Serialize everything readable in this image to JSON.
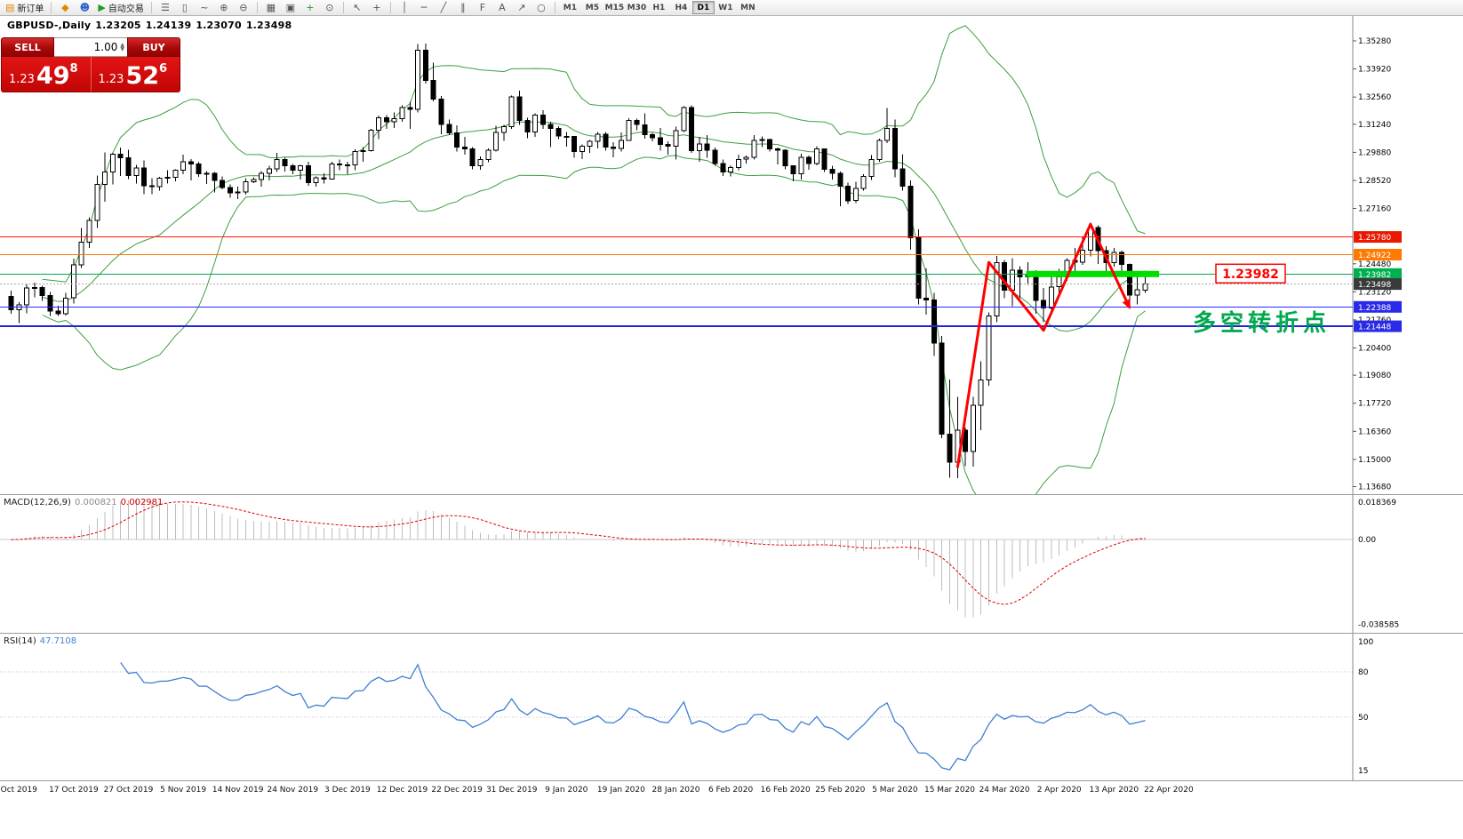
{
  "toolbar": {
    "new_order_label": "新订单",
    "auto_trading_label": "自动交易",
    "timeframes": [
      "M1",
      "M5",
      "M15",
      "M30",
      "H1",
      "H4",
      "D1",
      "W1",
      "MN"
    ],
    "active_timeframe": "D1"
  },
  "icons": {
    "new_order": "▤",
    "funnel": "◆",
    "profile": "☻",
    "auto_trading": "▶",
    "bar_chart": "☰",
    "candle_chart": "▯",
    "line_chart": "~",
    "zoom_in": "⊕",
    "zoom_out": "⊖",
    "tile_windows": "▦",
    "data_window": "▣",
    "indicators": "+",
    "clock": "⊙",
    "cursor": "↖",
    "crosshair": "+",
    "vertical_line": "│",
    "horizontal_line": "─",
    "trendline": "╱",
    "channel": "∥",
    "fibonacci": "F",
    "text_label": "A",
    "arrow_tool": "↗",
    "shapes": "○",
    "spinner_up": "▲",
    "spinner_down": "▼"
  },
  "trade_panel": {
    "sell_label": "SELL",
    "buy_label": "BUY",
    "volume": "1.00",
    "sell_big": "1.23",
    "sell_main": "49",
    "sell_sup": "8",
    "buy_big": "1.23",
    "buy_main": "52",
    "buy_sup": "6"
  },
  "chart_header": {
    "symbol_period": "GBPUSD-,Daily",
    "open": "1.23205",
    "high": "1.24139",
    "low": "1.23070",
    "close": "1.23498"
  },
  "annotations": {
    "turning_point_text": "多空转折点",
    "turning_point_color": "#00a84e",
    "price_callout": "1.23982",
    "price_callout_color": "#ff0000"
  },
  "indicators": {
    "macd": {
      "name": "MACD(12,26,9)",
      "value_main": "0.000821",
      "value_signal": "0.002981",
      "axis_max": "0.018369",
      "axis_zero": "0.00",
      "axis_min": "-0.038585",
      "hist_color": "#bdbdbd",
      "signal_color": "#e00000"
    },
    "rsi": {
      "name": "RSI(14)",
      "value": "47.7108",
      "axis": [
        "100",
        "80",
        "50",
        "15"
      ],
      "levels": [
        80,
        50
      ],
      "color": "#3e7fd4"
    }
  },
  "chart_data": {
    "type": "candlestick",
    "symbol": "GBPUSD-",
    "period": "Daily",
    "ylim": [
      1.134,
      1.364
    ],
    "y_ticks": [
      1.3528,
      1.3392,
      1.3256,
      1.3124,
      1.2988,
      1.2852,
      1.2716,
      1.2448,
      1.2312,
      1.2176,
      1.204,
      1.1908,
      1.1772,
      1.1636,
      1.15,
      1.1368
    ],
    "x_labels": [
      {
        "i": 1,
        "label": "Oct 2019"
      },
      {
        "i": 8,
        "label": "17 Oct 2019"
      },
      {
        "i": 15,
        "label": "27 Oct 2019"
      },
      {
        "i": 22,
        "label": "5 Nov 2019"
      },
      {
        "i": 29,
        "label": "14 Nov 2019"
      },
      {
        "i": 36,
        "label": "24 Nov 2019"
      },
      {
        "i": 43,
        "label": "3 Dec 2019"
      },
      {
        "i": 50,
        "label": "12 Dec 2019"
      },
      {
        "i": 57,
        "label": "22 Dec 2019"
      },
      {
        "i": 64,
        "label": "31 Dec 2019"
      },
      {
        "i": 71,
        "label": "9 Jan 2020"
      },
      {
        "i": 78,
        "label": "19 Jan 2020"
      },
      {
        "i": 85,
        "label": "28 Jan 2020"
      },
      {
        "i": 92,
        "label": "6 Feb 2020"
      },
      {
        "i": 99,
        "label": "16 Feb 2020"
      },
      {
        "i": 106,
        "label": "25 Feb 2020"
      },
      {
        "i": 113,
        "label": "5 Mar 2020"
      },
      {
        "i": 120,
        "label": "15 Mar 2020"
      },
      {
        "i": 127,
        "label": "24 Mar 2020"
      },
      {
        "i": 134,
        "label": "2 Apr 2020"
      },
      {
        "i": 141,
        "label": "13 Apr 2020"
      },
      {
        "i": 148,
        "label": "22 Apr 2020"
      }
    ],
    "bollinger": {
      "period": 20,
      "deviation": 2,
      "color": "#3f9e3f"
    },
    "candle_colors": {
      "bull": "#ffffff",
      "bear": "#000000",
      "outline": "#000000"
    },
    "hlines": [
      {
        "price": 1.2578,
        "color": "#ff1a00",
        "width": 1,
        "label": "1.25780",
        "badge_color": "#e81900"
      },
      {
        "price": 1.24922,
        "color": "#ff7a00",
        "width": 1,
        "label": "1.24922",
        "badge_color": "#ff7a00"
      },
      {
        "price": 1.23982,
        "color": "#00a651",
        "width": 1,
        "label": "1.23982",
        "badge_color": "#00b050"
      },
      {
        "price": 1.22388,
        "color": "#2828ff",
        "width": 1,
        "label": "1.22388",
        "badge_color": "#2a2ae8"
      },
      {
        "price": 1.21448,
        "color": "#2222e0",
        "width": 2,
        "label": "1.21448",
        "badge_color": "#2a2ae8"
      }
    ],
    "current_price": {
      "value": 1.23498,
      "label": "1.23498",
      "badge_color": "#3a3a3a",
      "line_color": "#aaaaaa"
    },
    "support_segment": {
      "price": 1.23982,
      "i_start": 130,
      "i_end": 147,
      "color": "#00dd00",
      "thickness": 7
    },
    "zigzag": {
      "color": "#ff0000",
      "points": [
        {
          "i": 121,
          "p": 1.146
        },
        {
          "i": 125,
          "p": 1.2455
        },
        {
          "i": 132,
          "p": 1.2125
        },
        {
          "i": 138,
          "p": 1.264
        },
        {
          "i": 143,
          "p": 1.2235
        }
      ]
    },
    "ohlc": [
      [
        1.229,
        1.2318,
        1.2205,
        1.2225
      ],
      [
        1.2225,
        1.2262,
        1.216,
        1.2248
      ],
      [
        1.2248,
        1.2348,
        1.2208,
        1.233
      ],
      [
        1.233,
        1.2356,
        1.2286,
        1.2332
      ],
      [
        1.2332,
        1.2342,
        1.2268,
        1.2295
      ],
      [
        1.2295,
        1.2312,
        1.2196,
        1.2218
      ],
      [
        1.2218,
        1.2244,
        1.2194,
        1.2206
      ],
      [
        1.2206,
        1.2307,
        1.2198,
        1.2282
      ],
      [
        1.2282,
        1.2472,
        1.2256,
        1.2442
      ],
      [
        1.2442,
        1.2622,
        1.2428,
        1.2552
      ],
      [
        1.2552,
        1.2672,
        1.2524,
        1.2658
      ],
      [
        1.2658,
        1.2876,
        1.2622,
        1.2832
      ],
      [
        1.2832,
        1.2988,
        1.2748,
        1.2892
      ],
      [
        1.2892,
        1.2986,
        1.2832,
        1.2978
      ],
      [
        1.2978,
        1.3012,
        1.2874,
        1.2962
      ],
      [
        1.2962,
        1.3,
        1.2858,
        1.2876
      ],
      [
        1.2876,
        1.2928,
        1.2836,
        1.2912
      ],
      [
        1.2912,
        1.2948,
        1.2786,
        1.2826
      ],
      [
        1.2826,
        1.2862,
        1.2786,
        1.2822
      ],
      [
        1.2822,
        1.2868,
        1.2802,
        1.2862
      ],
      [
        1.2862,
        1.2902,
        1.2836,
        1.2866
      ],
      [
        1.2866,
        1.2906,
        1.2848,
        1.2902
      ],
      [
        1.2902,
        1.2976,
        1.2882,
        1.2942
      ],
      [
        1.2942,
        1.2956,
        1.2852,
        1.2932
      ],
      [
        1.2932,
        1.2942,
        1.2868,
        1.2884
      ],
      [
        1.2884,
        1.2898,
        1.2834,
        1.2886
      ],
      [
        1.2886,
        1.2892,
        1.2794,
        1.2852
      ],
      [
        1.2852,
        1.2872,
        1.2808,
        1.2818
      ],
      [
        1.2818,
        1.2832,
        1.2768,
        1.2792
      ],
      [
        1.2792,
        1.2822,
        1.2762,
        1.2796
      ],
      [
        1.2796,
        1.2862,
        1.2782,
        1.2846
      ],
      [
        1.2846,
        1.2866,
        1.2838,
        1.2856
      ],
      [
        1.2856,
        1.2896,
        1.2822,
        1.2886
      ],
      [
        1.2886,
        1.2922,
        1.2852,
        1.2908
      ],
      [
        1.2908,
        1.2986,
        1.2892,
        1.2952
      ],
      [
        1.2952,
        1.2962,
        1.2894,
        1.2922
      ],
      [
        1.2922,
        1.2932,
        1.2882,
        1.2902
      ],
      [
        1.2902,
        1.2928,
        1.2856,
        1.2922
      ],
      [
        1.2922,
        1.2942,
        1.2826,
        1.2842
      ],
      [
        1.2842,
        1.2872,
        1.2822,
        1.2864
      ],
      [
        1.2864,
        1.2886,
        1.2836,
        1.2858
      ],
      [
        1.2858,
        1.2942,
        1.2856,
        1.2932
      ],
      [
        1.2932,
        1.2954,
        1.2902,
        1.2928
      ],
      [
        1.2928,
        1.2942,
        1.2882,
        1.2926
      ],
      [
        1.2926,
        1.3002,
        1.2902,
        1.2992
      ],
      [
        1.2992,
        1.3014,
        1.2942,
        1.2996
      ],
      [
        1.2996,
        1.3102,
        1.2992,
        1.3096
      ],
      [
        1.3096,
        1.3166,
        1.3052,
        1.3156
      ],
      [
        1.3156,
        1.3168,
        1.3102,
        1.3136
      ],
      [
        1.3136,
        1.3182,
        1.3106,
        1.3152
      ],
      [
        1.3152,
        1.3216,
        1.3136,
        1.3206
      ],
      [
        1.3206,
        1.3232,
        1.3102,
        1.3196
      ],
      [
        1.3196,
        1.3514,
        1.3182,
        1.3482
      ],
      [
        1.3482,
        1.3516,
        1.3322,
        1.3336
      ],
      [
        1.3336,
        1.3422,
        1.3236,
        1.3246
      ],
      [
        1.3246,
        1.3262,
        1.3076,
        1.3124
      ],
      [
        1.3124,
        1.3146,
        1.3072,
        1.3082
      ],
      [
        1.3082,
        1.3118,
        1.2992,
        1.3014
      ],
      [
        1.3014,
        1.3062,
        1.2976,
        1.3004
      ],
      [
        1.3004,
        1.3014,
        1.2906,
        1.2922
      ],
      [
        1.2922,
        1.2968,
        1.2904,
        1.2954
      ],
      [
        1.2954,
        1.3006,
        1.294,
        1.2998
      ],
      [
        1.2998,
        1.3116,
        1.2992,
        1.3084
      ],
      [
        1.3084,
        1.3122,
        1.3044,
        1.3112
      ],
      [
        1.3112,
        1.3264,
        1.3102,
        1.3256
      ],
      [
        1.3256,
        1.3286,
        1.3122,
        1.3142
      ],
      [
        1.3142,
        1.3156,
        1.3056,
        1.3086
      ],
      [
        1.3086,
        1.3176,
        1.3062,
        1.3168
      ],
      [
        1.3168,
        1.3192,
        1.3102,
        1.3124
      ],
      [
        1.3124,
        1.3136,
        1.3014,
        1.3104
      ],
      [
        1.3104,
        1.3114,
        1.3052,
        1.3066
      ],
      [
        1.3066,
        1.3086,
        1.3016,
        1.3064
      ],
      [
        1.3064,
        1.3066,
        1.2962,
        1.2992
      ],
      [
        1.2992,
        1.3026,
        1.2956,
        1.3018
      ],
      [
        1.3018,
        1.3048,
        1.2986,
        1.3042
      ],
      [
        1.3042,
        1.3086,
        1.3006,
        1.3076
      ],
      [
        1.3076,
        1.3086,
        1.2996,
        1.3014
      ],
      [
        1.3014,
        1.3036,
        1.2964,
        1.3006
      ],
      [
        1.3006,
        1.3084,
        1.2992,
        1.3046
      ],
      [
        1.3046,
        1.3154,
        1.3044,
        1.3142
      ],
      [
        1.3142,
        1.3152,
        1.3096,
        1.3122
      ],
      [
        1.3122,
        1.3176,
        1.3054,
        1.3074
      ],
      [
        1.3074,
        1.3082,
        1.3042,
        1.3058
      ],
      [
        1.3058,
        1.3106,
        1.2996,
        1.3026
      ],
      [
        1.3026,
        1.3042,
        1.2976,
        1.3018
      ],
      [
        1.3018,
        1.3112,
        1.2954,
        1.3094
      ],
      [
        1.3094,
        1.3212,
        1.3086,
        1.3206
      ],
      [
        1.3206,
        1.3216,
        1.2986,
        1.2996
      ],
      [
        1.2996,
        1.3062,
        1.2942,
        1.3028
      ],
      [
        1.3028,
        1.3072,
        1.2962,
        1.2998
      ],
      [
        1.2998,
        1.3012,
        1.2922,
        1.2934
      ],
      [
        1.2934,
        1.2952,
        1.2874,
        1.2892
      ],
      [
        1.2892,
        1.2926,
        1.2872,
        1.2914
      ],
      [
        1.2914,
        1.2976,
        1.2902,
        1.2954
      ],
      [
        1.2954,
        1.2972,
        1.2934,
        1.2964
      ],
      [
        1.2964,
        1.3072,
        1.2952,
        1.3046
      ],
      [
        1.3046,
        1.3066,
        1.3014,
        1.305
      ],
      [
        1.305,
        1.3054,
        1.2992,
        1.3004
      ],
      [
        1.3004,
        1.3012,
        1.293,
        1.2998
      ],
      [
        1.2998,
        1.3002,
        1.2906,
        1.2922
      ],
      [
        1.2922,
        1.2926,
        1.2848,
        1.2884
      ],
      [
        1.2884,
        1.2982,
        1.2856,
        1.2964
      ],
      [
        1.2964,
        1.2972,
        1.2904,
        1.2934
      ],
      [
        1.2934,
        1.3018,
        1.2926,
        1.3004
      ],
      [
        1.3004,
        1.3006,
        1.2892,
        1.2906
      ],
      [
        1.2906,
        1.2922,
        1.2856,
        1.2886
      ],
      [
        1.2886,
        1.2894,
        1.2726,
        1.2824
      ],
      [
        1.2824,
        1.2842,
        1.2738,
        1.2754
      ],
      [
        1.2754,
        1.2846,
        1.2742,
        1.2814
      ],
      [
        1.2814,
        1.2882,
        1.2802,
        1.2872
      ],
      [
        1.2872,
        1.2974,
        1.2854,
        1.2954
      ],
      [
        1.2954,
        1.3054,
        1.2942,
        1.3046
      ],
      [
        1.3046,
        1.3202,
        1.3032,
        1.3104
      ],
      [
        1.3104,
        1.3146,
        1.2866,
        1.2908
      ],
      [
        1.2908,
        1.2978,
        1.2802,
        1.2824
      ],
      [
        1.2824,
        1.2852,
        1.2516,
        1.2574
      ],
      [
        1.2574,
        1.2614,
        1.2252,
        1.2282
      ],
      [
        1.2282,
        1.2426,
        1.2202,
        1.2272
      ],
      [
        1.2272,
        1.2306,
        1.2002,
        1.2064
      ],
      [
        1.2064,
        1.2098,
        1.1602,
        1.1622
      ],
      [
        1.1622,
        1.1886,
        1.1412,
        1.1486
      ],
      [
        1.1486,
        1.1802,
        1.1409,
        1.1642
      ],
      [
        1.1642,
        1.1654,
        1.1466,
        1.1538
      ],
      [
        1.1538,
        1.1804,
        1.1464,
        1.1762
      ],
      [
        1.1762,
        1.1976,
        1.1642,
        1.1884
      ],
      [
        1.1884,
        1.2212,
        1.1856,
        1.2196
      ],
      [
        1.2196,
        1.2486,
        1.2164,
        1.2454
      ],
      [
        1.2454,
        1.2466,
        1.2282,
        1.232
      ],
      [
        1.232,
        1.2474,
        1.2242,
        1.2416
      ],
      [
        1.2416,
        1.2436,
        1.2282,
        1.2384
      ],
      [
        1.2384,
        1.2456,
        1.2346,
        1.2394
      ],
      [
        1.2394,
        1.2416,
        1.2206,
        1.227
      ],
      [
        1.227,
        1.233,
        1.2164,
        1.2234
      ],
      [
        1.2234,
        1.2392,
        1.2206,
        1.2336
      ],
      [
        1.2336,
        1.2424,
        1.2302,
        1.2384
      ],
      [
        1.2384,
        1.2476,
        1.2366,
        1.2464
      ],
      [
        1.2464,
        1.2524,
        1.2406,
        1.2456
      ],
      [
        1.2456,
        1.258,
        1.2442,
        1.2514
      ],
      [
        1.2514,
        1.2648,
        1.2484,
        1.2624
      ],
      [
        1.2624,
        1.2634,
        1.2448,
        1.2512
      ],
      [
        1.2512,
        1.2532,
        1.2406,
        1.2454
      ],
      [
        1.2454,
        1.2524,
        1.2434,
        1.2502
      ],
      [
        1.2502,
        1.2512,
        1.2388,
        1.2444
      ],
      [
        1.2444,
        1.245,
        1.2246,
        1.2296
      ],
      [
        1.2296,
        1.2386,
        1.2252,
        1.2322
      ],
      [
        1.23205,
        1.24139,
        1.2307,
        1.23498
      ]
    ]
  }
}
